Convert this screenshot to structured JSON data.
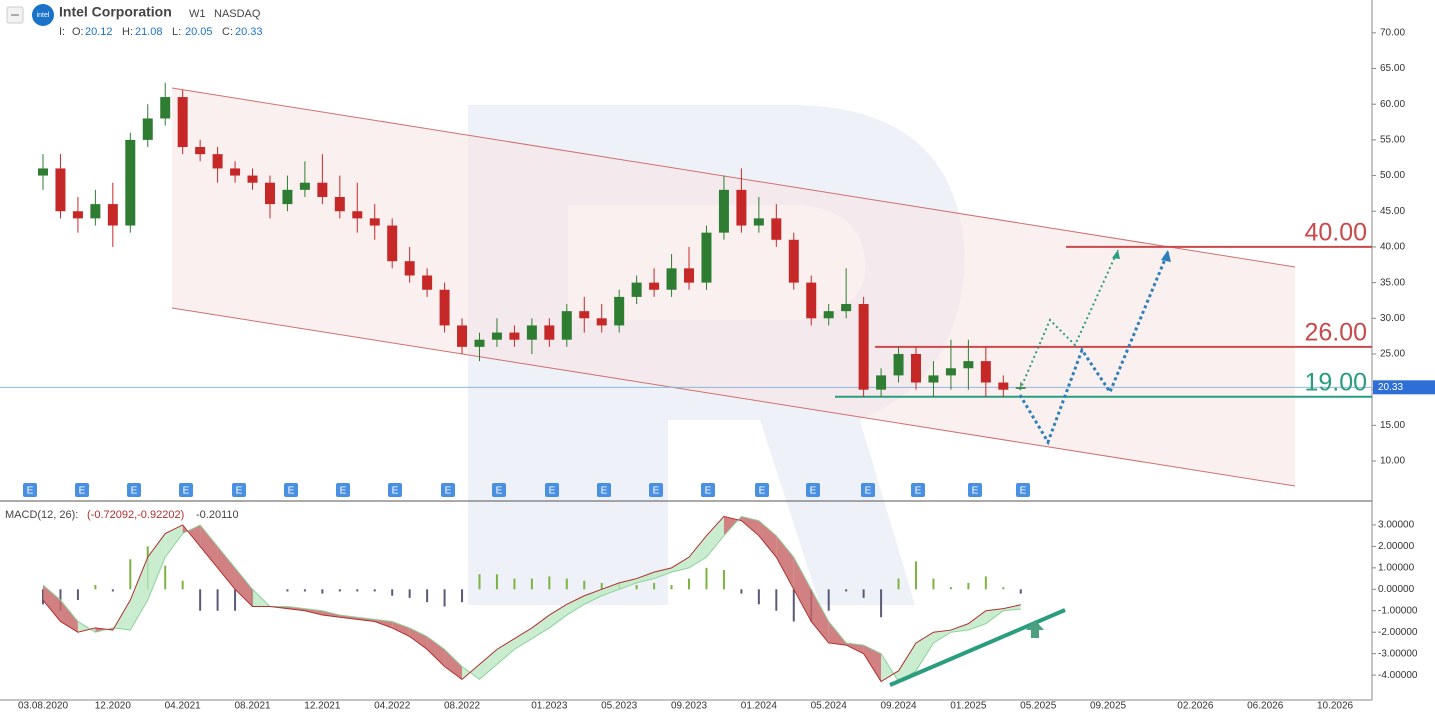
{
  "chart_data": {
    "type": "candlestick",
    "title": "Intel Corporation",
    "timeframe": "W1",
    "exchange": "NASDAQ",
    "logo_text": "intel",
    "ohlc_prefix": "I:",
    "ohlc": [
      {
        "label": "O:",
        "value": 20.12
      },
      {
        "label": "H:",
        "value": 21.08
      },
      {
        "label": "L:",
        "value": 20.05
      },
      {
        "label": "C:",
        "value": 20.33
      }
    ],
    "last_price": 20.33,
    "up_color": "#2e7d32",
    "down_color": "#c62828",
    "x": [
      "08.2020",
      "09.2020",
      "10.2020",
      "11.2020",
      "12.2020",
      "01.2021",
      "02.2021",
      "03.2021",
      "04.2021",
      "05.2021",
      "06.2021",
      "07.2021",
      "08.2021",
      "09.2021",
      "10.2021",
      "11.2021",
      "12.2021",
      "01.2022",
      "02.2022",
      "03.2022",
      "04.2022",
      "05.2022",
      "06.2022",
      "07.2022",
      "08.2022",
      "09.2022",
      "10.2022",
      "11.2022",
      "12.2022",
      "01.2023",
      "02.2023",
      "03.2023",
      "04.2023",
      "05.2023",
      "06.2023",
      "07.2023",
      "08.2023",
      "09.2023",
      "10.2023",
      "11.2023",
      "12.2023",
      "01.2024",
      "02.2024",
      "03.2024",
      "04.2024",
      "05.2024",
      "06.2024",
      "07.2024",
      "08.2024",
      "09.2024",
      "10.2024",
      "11.2024",
      "12.2024",
      "01.2025",
      "02.2025",
      "03.2025",
      "04.2025"
    ],
    "open": [
      50,
      51,
      45,
      44,
      46,
      43,
      55,
      58,
      61,
      54,
      53,
      51,
      50,
      49,
      46,
      48,
      49,
      47,
      45,
      44,
      43,
      38,
      36,
      34,
      29,
      26,
      27,
      28,
      27,
      29,
      27,
      31,
      30,
      29,
      33,
      35,
      34,
      37,
      35,
      42,
      48,
      43,
      44,
      41,
      35,
      30,
      31,
      32,
      20,
      22,
      25,
      21,
      22,
      23,
      24,
      21,
      20.12
    ],
    "high": [
      53,
      53,
      47,
      48,
      49,
      56,
      60,
      63,
      62,
      55,
      54,
      52,
      51,
      50,
      50,
      52,
      53,
      50,
      49,
      46,
      44,
      40,
      37,
      35,
      30,
      28,
      30,
      29,
      30,
      30,
      32,
      33,
      32,
      34,
      36,
      37,
      39,
      40,
      43,
      50,
      51,
      47,
      46,
      42,
      36,
      32,
      37,
      33,
      23,
      26,
      26,
      24,
      27,
      27,
      26,
      22,
      21.08
    ],
    "low": [
      48,
      44,
      42,
      43,
      40,
      42,
      54,
      57,
      53,
      52,
      49,
      49,
      48,
      44,
      45,
      47,
      46,
      44,
      42,
      41,
      37,
      35,
      33,
      28,
      25,
      24,
      26,
      26,
      25,
      26,
      26,
      28,
      28,
      28,
      32,
      33,
      33,
      34,
      34,
      41,
      42,
      42,
      40,
      34,
      29,
      29,
      30,
      19,
      19,
      21,
      20,
      19,
      20,
      20,
      19,
      19,
      20.05
    ],
    "close": [
      51,
      45,
      44,
      46,
      43,
      55,
      58,
      61,
      54,
      53,
      51,
      50,
      49,
      46,
      48,
      49,
      47,
      45,
      44,
      43,
      38,
      36,
      34,
      29,
      26,
      27,
      28,
      27,
      29,
      27,
      31,
      30,
      29,
      33,
      35,
      34,
      37,
      35,
      42,
      48,
      43,
      44,
      41,
      35,
      30,
      31,
      32,
      20,
      22,
      25,
      21,
      22,
      23,
      24,
      21,
      20,
      20.33
    ],
    "ylim": [
      4.4,
      74.6
    ],
    "yticks": [
      {
        "value": 10,
        "label": "10.00"
      },
      {
        "value": 15,
        "label": "15.00"
      },
      {
        "value": 20,
        "label": "20.00"
      },
      {
        "value": 25,
        "label": "25.00"
      },
      {
        "value": 30,
        "label": "30.00"
      },
      {
        "value": 35,
        "label": "35.00"
      },
      {
        "value": 40,
        "label": "40.00"
      },
      {
        "value": 45,
        "label": "45.00"
      },
      {
        "value": 50,
        "label": "50.00"
      },
      {
        "value": 55,
        "label": "55.00"
      },
      {
        "value": 60,
        "label": "60.00"
      },
      {
        "value": 65,
        "label": "65.00"
      },
      {
        "value": 70,
        "label": "70.00"
      }
    ],
    "levels": [
      {
        "value": 40,
        "label": "40.00",
        "color": "#c94a4a"
      },
      {
        "value": 26,
        "label": "26.00",
        "color": "#c94a4a"
      },
      {
        "value": 19,
        "label": "19.00",
        "color": "#2a9d7f"
      }
    ],
    "earnings_label": "E",
    "xticks": [
      "03.08.2020",
      "12.2020",
      "04.2021",
      "08.2021",
      "12.2021",
      "04.2022",
      "08.2022",
      "01.2023",
      "05.2023",
      "09.2023",
      "01.2024",
      "05.2024",
      "09.2024",
      "01.2025",
      "05.2025",
      "09.2025",
      "02.2026",
      "06.2026",
      "10.2026"
    ],
    "macd": {
      "title": "MACD(12, 26):",
      "values_text": "(-0.72092,-0.92202)",
      "hist_text": "-0.20110",
      "line": [
        -0.5,
        -1.5,
        -2.0,
        -1.8,
        -1.9,
        -0.5,
        1.5,
        2.6,
        3.0,
        2.0,
        1.0,
        0.0,
        -0.8,
        -0.8,
        -0.9,
        -1.0,
        -1.2,
        -1.3,
        -1.4,
        -1.5,
        -1.8,
        -2.2,
        -2.8,
        -3.6,
        -4.2,
        -3.5,
        -2.8,
        -2.3,
        -1.8,
        -1.2,
        -0.7,
        -0.3,
        0.0,
        0.3,
        0.5,
        0.8,
        1.0,
        1.5,
        2.5,
        3.4,
        3.2,
        2.5,
        1.5,
        0.0,
        -1.5,
        -2.5,
        -2.6,
        -3.0,
        -4.3,
        -3.8,
        -2.5,
        -2.0,
        -1.9,
        -1.6,
        -1.0,
        -0.9,
        -0.72092
      ],
      "signal": [
        0.2,
        -0.5,
        -1.5,
        -2.0,
        -1.8,
        -1.9,
        -0.5,
        1.5,
        2.6,
        3.0,
        2.0,
        1.0,
        0.0,
        -0.8,
        -0.8,
        -0.9,
        -1.0,
        -1.2,
        -1.3,
        -1.4,
        -1.5,
        -1.8,
        -2.2,
        -2.8,
        -3.6,
        -4.2,
        -3.5,
        -2.8,
        -2.3,
        -1.8,
        -1.2,
        -0.7,
        -0.3,
        0.0,
        0.3,
        0.5,
        0.8,
        1.0,
        1.5,
        2.5,
        3.4,
        3.2,
        2.5,
        1.5,
        0.0,
        -1.5,
        -2.5,
        -2.6,
        -3.0,
        -4.3,
        -3.8,
        -2.5,
        -2.0,
        -1.9,
        -1.6,
        -1.0,
        -0.92202
      ],
      "histogram": [
        -0.7,
        -1.0,
        -0.5,
        0.2,
        -0.1,
        1.4,
        2.0,
        1.1,
        0.4,
        -1.0,
        -1.0,
        -1.0,
        -0.8,
        0.0,
        -0.1,
        -0.1,
        -0.2,
        -0.1,
        -0.1,
        -0.1,
        -0.3,
        -0.4,
        -0.6,
        -0.8,
        -0.6,
        0.7,
        0.7,
        0.5,
        0.5,
        0.6,
        0.5,
        0.4,
        0.3,
        0.3,
        0.2,
        0.3,
        0.2,
        0.5,
        1.0,
        0.9,
        -0.2,
        -0.7,
        -1.0,
        -1.5,
        -1.5,
        -1.0,
        -0.1,
        -0.4,
        -1.3,
        0.5,
        1.3,
        0.5,
        0.1,
        0.3,
        0.6,
        0.1,
        -0.2011
      ],
      "line_color": "#b03030",
      "signal_color": "#8fd19e",
      "hist_up_color": "#7cb342",
      "hist_down_color": "#5a5a78",
      "ylim": [
        -5.16,
        4.07
      ],
      "yticks": [
        {
          "value": 3,
          "label": "3.00000"
        },
        {
          "value": 2,
          "label": "2.00000"
        },
        {
          "value": 1,
          "label": "1.00000"
        },
        {
          "value": 0,
          "label": "0.00000"
        },
        {
          "value": -1,
          "label": "-1.00000"
        },
        {
          "value": -2,
          "label": "-2.00000"
        },
        {
          "value": -3,
          "label": "-3.00000"
        },
        {
          "value": -4,
          "label": "-4.00000"
        }
      ]
    }
  }
}
